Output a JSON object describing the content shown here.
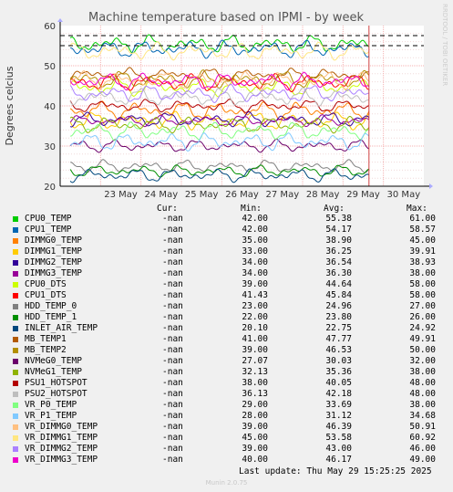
{
  "footer": "Munin 2.0.75",
  "last_update": "Last update: Thu May 29 15:25:25 2025",
  "legend_headers": {
    "cur": "Cur:",
    "min": "Min:",
    "avg": "Avg:",
    "max": "Max:"
  },
  "chart_data": {
    "type": "line",
    "title": "Machine temperature based on IPMI - by week",
    "ylabel": "Degrees celcius",
    "watermark": "RRDTOOL / TOBI OETIKER",
    "ylim": [
      20,
      60
    ],
    "yticks": [
      20,
      30,
      40,
      50,
      60
    ],
    "xlim": [
      "2025-05-22",
      "2025-05-31"
    ],
    "xticks": [
      "23 May",
      "24 May",
      "25 May",
      "26 May",
      "27 May",
      "28 May",
      "29 May",
      "30 May"
    ],
    "grid": true,
    "current_time": "2025-05-29 15:25",
    "thresholds": [
      57.5,
      55.0
    ],
    "series": [
      {
        "name": "CPU0_TEMP",
        "color": "#00cc00",
        "cur": "-nan",
        "min": "42.00",
        "avg": "55.38",
        "max": "61.00"
      },
      {
        "name": "CPU1_TEMP",
        "color": "#0066b3",
        "cur": "-nan",
        "min": "42.00",
        "avg": "54.17",
        "max": "58.57"
      },
      {
        "name": "DIMMG0_TEMP",
        "color": "#ff8000",
        "cur": "-nan",
        "min": "35.00",
        "avg": "38.90",
        "max": "45.00"
      },
      {
        "name": "DIMMG1_TEMP",
        "color": "#ffcc00",
        "cur": "-nan",
        "min": "33.00",
        "avg": "36.25",
        "max": "39.91"
      },
      {
        "name": "DIMMG2_TEMP",
        "color": "#330099",
        "cur": "-nan",
        "min": "34.00",
        "avg": "36.54",
        "max": "38.93"
      },
      {
        "name": "DIMMG3_TEMP",
        "color": "#990099",
        "cur": "-nan",
        "min": "34.00",
        "avg": "36.30",
        "max": "38.00"
      },
      {
        "name": "CPU0_DTS",
        "color": "#ccff00",
        "cur": "-nan",
        "min": "39.00",
        "avg": "44.64",
        "max": "58.00"
      },
      {
        "name": "CPU1_DTS",
        "color": "#ff0000",
        "cur": "-nan",
        "min": "41.43",
        "avg": "45.84",
        "max": "58.00"
      },
      {
        "name": "HDD_TEMP_0",
        "color": "#808080",
        "cur": "-nan",
        "min": "23.00",
        "avg": "24.96",
        "max": "27.00"
      },
      {
        "name": "HDD_TEMP_1",
        "color": "#008f00",
        "cur": "-nan",
        "min": "22.00",
        "avg": "23.80",
        "max": "26.00"
      },
      {
        "name": "INLET_AIR_TEMP",
        "color": "#00487d",
        "cur": "-nan",
        "min": "20.10",
        "avg": "22.75",
        "max": "24.92"
      },
      {
        "name": "MB_TEMP1",
        "color": "#b35a00",
        "cur": "-nan",
        "min": "41.00",
        "avg": "47.77",
        "max": "49.91"
      },
      {
        "name": "MB_TEMP2",
        "color": "#b38f00",
        "cur": "-nan",
        "min": "39.00",
        "avg": "46.53",
        "max": "50.00"
      },
      {
        "name": "NVMeG0_TEMP",
        "color": "#6b006b",
        "cur": "-nan",
        "min": "27.07",
        "avg": "30.03",
        "max": "32.00"
      },
      {
        "name": "NVMeG1_TEMP",
        "color": "#8fb300",
        "cur": "-nan",
        "min": "32.13",
        "avg": "35.36",
        "max": "38.00"
      },
      {
        "name": "PSU1_HOTSPOT",
        "color": "#b30000",
        "cur": "-nan",
        "min": "38.00",
        "avg": "40.05",
        "max": "48.00"
      },
      {
        "name": "PSU2_HOTSPOT",
        "color": "#bebebe",
        "cur": "-nan",
        "min": "36.13",
        "avg": "42.18",
        "max": "48.00"
      },
      {
        "name": "VR_P0_TEMP",
        "color": "#80ff80",
        "cur": "-nan",
        "min": "29.00",
        "avg": "33.69",
        "max": "38.00"
      },
      {
        "name": "VR_P1_TEMP",
        "color": "#80c9ff",
        "cur": "-nan",
        "min": "28.00",
        "avg": "31.12",
        "max": "34.68"
      },
      {
        "name": "VR_DIMMG0_TEMP",
        "color": "#ffc080",
        "cur": "-nan",
        "min": "39.00",
        "avg": "46.39",
        "max": "50.91"
      },
      {
        "name": "VR_DIMMG1_TEMP",
        "color": "#ffe680",
        "cur": "-nan",
        "min": "45.00",
        "avg": "53.58",
        "max": "60.92"
      },
      {
        "name": "VR_DIMMG2_TEMP",
        "color": "#aa80ff",
        "cur": "-nan",
        "min": "39.00",
        "avg": "43.00",
        "max": "46.00"
      },
      {
        "name": "VR_DIMMG3_TEMP",
        "color": "#ee00cc",
        "cur": "-nan",
        "min": "40.00",
        "avg": "46.17",
        "max": "49.00"
      }
    ]
  }
}
